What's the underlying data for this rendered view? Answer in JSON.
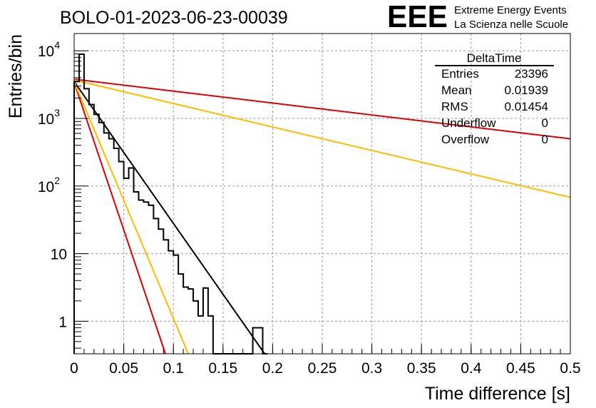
{
  "chart_data": {
    "type": "line",
    "title": "BOLO-01-2023-06-23-00039",
    "xlabel": "Time difference [s]",
    "ylabel": "Entries/bin",
    "xlim": [
      0,
      0.5
    ],
    "ylim": [
      0.33,
      18000
    ],
    "y_scale": "log",
    "grid": true,
    "x_ticks": [
      0,
      0.05,
      0.1,
      0.15,
      0.2,
      0.25,
      0.3,
      0.35,
      0.4,
      0.45,
      0.5
    ],
    "x_tick_labels": [
      "0",
      "0.05",
      "0.1",
      "0.15",
      "0.2",
      "0.25",
      "0.3",
      "0.35",
      "0.4",
      "0.45",
      "0.5"
    ],
    "y_tick_labels": [
      {
        "value": 1,
        "base": "1",
        "exp": ""
      },
      {
        "value": 10,
        "base": "10",
        "exp": ""
      },
      {
        "value": 100,
        "base": "10",
        "exp": "2"
      },
      {
        "value": 1000,
        "base": "10",
        "exp": "3"
      },
      {
        "value": 10000,
        "base": "10",
        "exp": "4"
      }
    ],
    "histogram": {
      "bin_width": 0.005,
      "counts": [
        3500,
        8900,
        2750,
        1600,
        1150,
        870,
        610,
        500,
        360,
        230,
        130,
        185,
        82,
        62,
        58,
        52,
        33,
        23,
        16,
        11,
        9.5,
        5,
        3.2,
        3.0,
        2.0,
        1.2,
        3.1,
        1.2,
        0,
        0,
        0,
        0,
        0,
        0,
        0,
        0,
        0.8,
        0.8,
        0
      ],
      "color": "#000000"
    },
    "series": [
      {
        "color": "#000000",
        "x": [
          0,
          0.192
        ],
        "y": [
          3500,
          0.33
        ]
      },
      {
        "color": "#dd0000",
        "x": [
          0,
          0.092
        ],
        "y": [
          3400,
          0.33
        ]
      },
      {
        "color": "#ffbb00",
        "x": [
          0,
          0.115
        ],
        "y": [
          3450,
          0.33
        ]
      },
      {
        "color": "#dd0000",
        "x": [
          0,
          0.5
        ],
        "y": [
          3800,
          500
        ]
      },
      {
        "color": "#ffbb00",
        "x": [
          0,
          0.5
        ],
        "y": [
          3700,
          68
        ]
      }
    ],
    "stats_box": {
      "title": "DeltaTime",
      "rows": [
        {
          "label": "Entries",
          "value": "23396"
        },
        {
          "label": "Mean",
          "value": "0.01939"
        },
        {
          "label": "RMS",
          "value": "0.01454"
        },
        {
          "label": "Underflow",
          "value": "0"
        },
        {
          "label": "Overflow",
          "value": "0"
        }
      ]
    }
  },
  "logo": {
    "mark": "EEE",
    "line1": "Extreme Energy Events",
    "line2": "La Scienza nelle Scuole",
    "color": "#1a1aee"
  }
}
